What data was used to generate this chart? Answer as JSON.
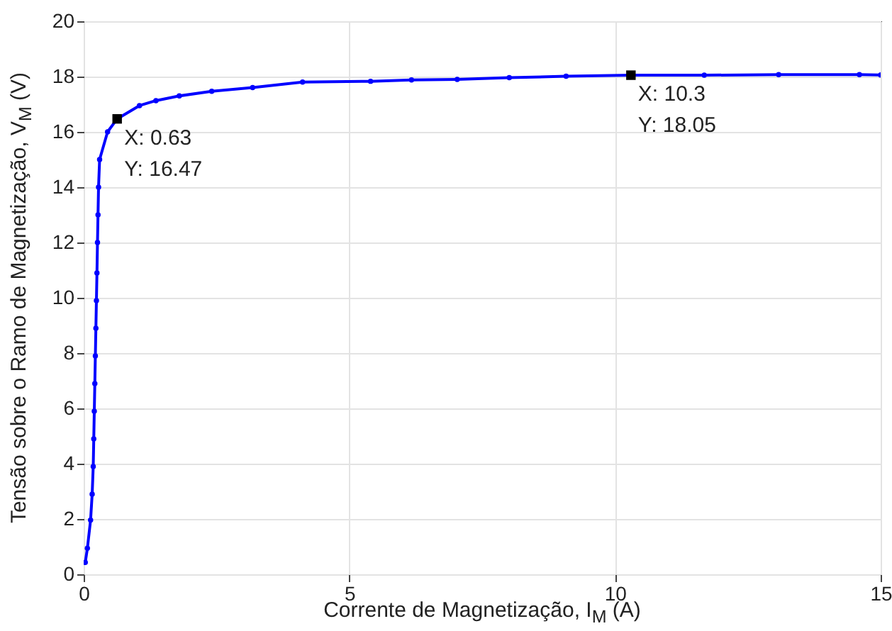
{
  "chart_data": {
    "type": "line",
    "xlabel": "Corrente de Magnetização, I$_{M}$ (A)",
    "ylabel": "Tensão sobre o Ramo de Magnetização, V$_{M}$ (V)",
    "xlim": [
      0,
      15
    ],
    "xticks": [
      0,
      5,
      10,
      15
    ],
    "ylim": [
      0,
      20
    ],
    "yticks": [
      0,
      2,
      4,
      6,
      8,
      10,
      12,
      14,
      16,
      18,
      20
    ],
    "grid": true,
    "marker": "circle",
    "line_style": "solid",
    "x": [
      0.03,
      0.07,
      0.13,
      0.16,
      0.18,
      0.19,
      0.2,
      0.21,
      0.22,
      0.23,
      0.24,
      0.25,
      0.26,
      0.27,
      0.28,
      0.3,
      0.45,
      0.63,
      1.05,
      1.36,
      1.8,
      2.41,
      3.18,
      4.12,
      5.4,
      6.17,
      7.03,
      8.01,
      9.08,
      10.3,
      11.68,
      13.08,
      14.6,
      15
    ],
    "series": [
      {
        "color": "#0000ff",
        "values": [
          0.43,
          0.94,
          1.96,
          2.9,
          3.9,
          4.9,
          5.9,
          6.9,
          7.9,
          8.9,
          9.9,
          10.9,
          12.0,
          13.0,
          14.0,
          15.0,
          16.0,
          16.47,
          16.95,
          17.13,
          17.3,
          17.47,
          17.6,
          17.8,
          17.83,
          17.88,
          17.9,
          17.96,
          18.01,
          18.05,
          18.05,
          18.07,
          18.07,
          18.06
        ]
      }
    ],
    "annotations": [
      {
        "text": "X: 0.63\nY: 16.47",
        "x": 0.63,
        "y": 16.47
      },
      {
        "text": "X: 10.3\nY: 18.05",
        "x": 10.3,
        "y": 18.05
      }
    ]
  }
}
